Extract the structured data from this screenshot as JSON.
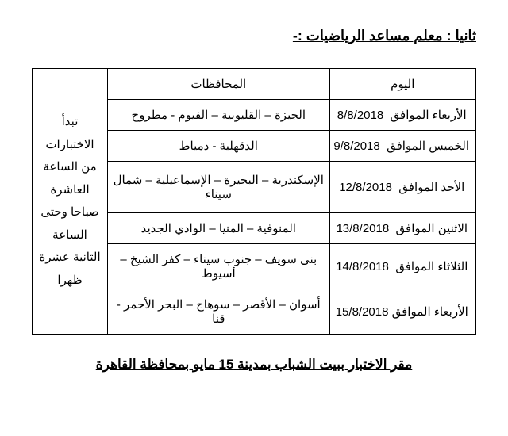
{
  "heading": "ثانيا : معلم مساعد الرياضيات :-",
  "table": {
    "columns": {
      "day": "اليوم",
      "governorates": "المحافظات"
    },
    "note": "تبدأ الاختبارات من الساعة العاشرة صباحا وحتى الساعة الثانية عشرة ظهرا",
    "rows": [
      {
        "day_name": "الأربعاء الموافق",
        "date": "8/8/2018",
        "gov": "الجيزة – القليوبية – الفيوم - مطروح"
      },
      {
        "day_name": "الخميس الموافق",
        "date": "9/8/2018",
        "gov": "الدقهلية - دمياط"
      },
      {
        "day_name": "الأحد الموافق",
        "date": "12/8/2018",
        "gov": "الإسكندرية – البحيرة – الإسماعيلية – شمال سيناء"
      },
      {
        "day_name": "الاثنين الموافق",
        "date": "13/8/2018",
        "gov": "المنوفية – المنيا – الوادي الجديد"
      },
      {
        "day_name": "الثلاثاء الموافق",
        "date": "14/8/2018",
        "gov": "بنى سويف – جنوب سيناء – كفر الشيخ – أسيوط"
      },
      {
        "day_name": "الأربعاء الموافق",
        "date": "15/8/2018",
        "gov": "أسوان – الأقصر – سوهاج – البحر الأحمر - قنا"
      }
    ]
  },
  "footer": "مقر الاختبار ببيت الشباب بمدينة 15 مايو بمحافظة القاهرة",
  "style": {
    "page_bg": "#ffffff",
    "text_color": "#000000",
    "border_color": "#000000",
    "heading_fontsize": 18,
    "body_fontsize": 15,
    "footer_fontsize": 17
  }
}
